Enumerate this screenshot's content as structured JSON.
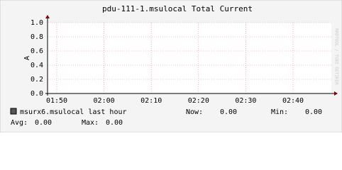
{
  "chart_data": {
    "type": "line",
    "title": "pdu-111-1.msulocal Total Current",
    "ylabel": "A",
    "watermark": "RRDTOOL / TOBI OETIKER",
    "ylim": [
      0,
      1
    ],
    "yticks": [
      {
        "value": 0,
        "label": "0.0"
      },
      {
        "value": 0.2,
        "label": "0.2"
      },
      {
        "value": 0.4,
        "label": "0.4"
      },
      {
        "value": 0.6,
        "label": "0.6"
      },
      {
        "value": 0.8,
        "label": "0.8"
      },
      {
        "value": 1,
        "label": "1.0"
      }
    ],
    "xticks": [
      "01:50",
      "02:00",
      "02:10",
      "02:20",
      "02:30",
      "02:40"
    ],
    "grid": true,
    "legend": {
      "name": "msurx6.msulocal last hour",
      "color": "#555555",
      "stats": [
        {
          "label": "Now:",
          "value": "0.00"
        },
        {
          "label": "Min:",
          "value": "0.00"
        },
        {
          "label": "Avg:",
          "value": "0.00"
        },
        {
          "label": "Max:",
          "value": "0.00"
        }
      ]
    }
  }
}
